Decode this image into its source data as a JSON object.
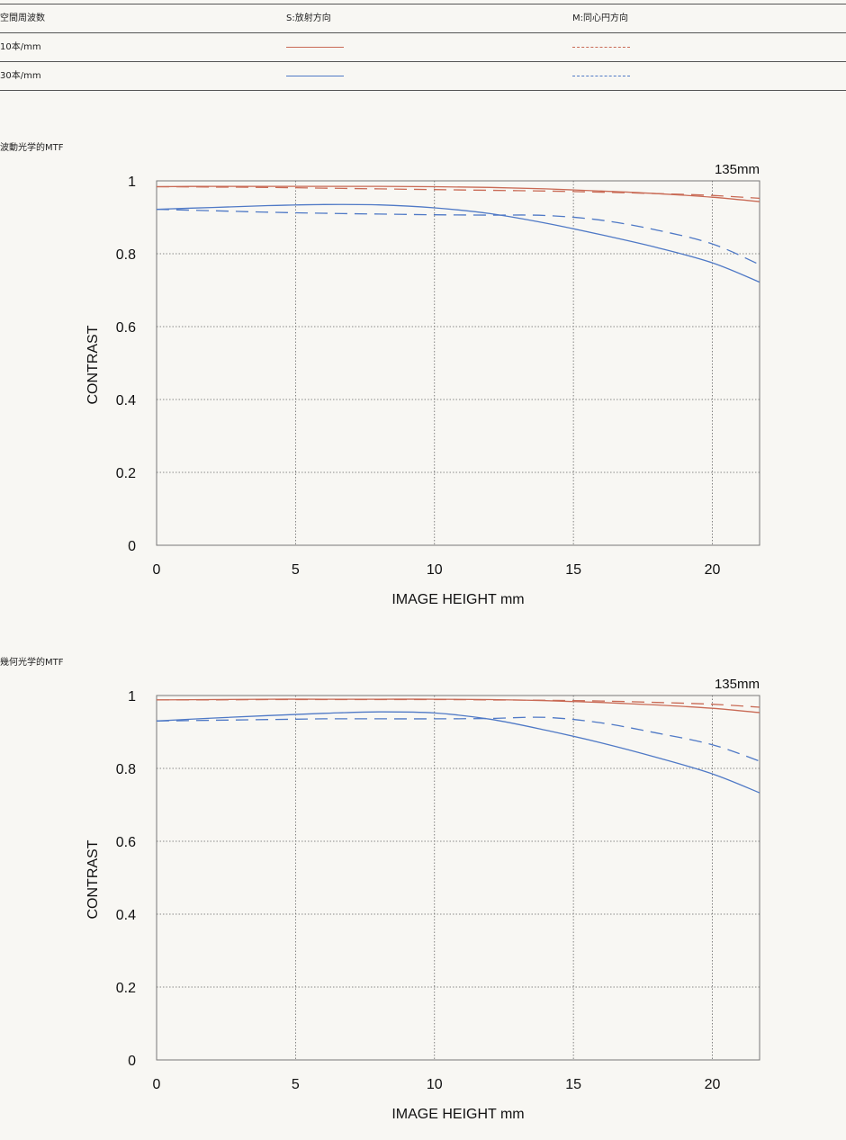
{
  "legend": {
    "header": [
      "空間周波数",
      "S:放射方向",
      "M:同心円方向"
    ],
    "rows": [
      {
        "label": "10本/mm",
        "color": "#c96a55"
      },
      {
        "label": "30本/mm",
        "color": "#4f79c6"
      }
    ]
  },
  "sections": [
    {
      "label": "波動光学的MTF"
    },
    {
      "label": "幾何光学的MTF"
    }
  ],
  "chart_data": [
    {
      "type": "line",
      "title": "135mm",
      "xlabel": "IMAGE HEIGHT  mm",
      "ylabel": "CONTRAST",
      "xlim": [
        0,
        21.7
      ],
      "ylim": [
        0,
        1
      ],
      "xticks": [
        0,
        5,
        10,
        15,
        20
      ],
      "yticks": [
        0,
        0.2,
        0.4,
        0.6,
        0.8,
        1
      ],
      "grid": true,
      "series": [
        {
          "freq": "10本/mm",
          "dir": "S",
          "color": "#c96a55",
          "dash": false,
          "x": [
            0,
            2,
            4,
            6,
            8,
            10,
            12,
            14,
            16,
            18,
            20,
            21.7
          ],
          "y": [
            0.984,
            0.985,
            0.985,
            0.985,
            0.985,
            0.984,
            0.982,
            0.978,
            0.972,
            0.965,
            0.955,
            0.943
          ]
        },
        {
          "freq": "10本/mm",
          "dir": "M",
          "color": "#c96a55",
          "dash": true,
          "x": [
            0,
            2,
            4,
            6,
            8,
            10,
            12,
            14,
            16,
            18,
            20,
            21.7
          ],
          "y": [
            0.984,
            0.983,
            0.982,
            0.98,
            0.978,
            0.976,
            0.974,
            0.972,
            0.969,
            0.965,
            0.96,
            0.952
          ]
        },
        {
          "freq": "30本/mm",
          "dir": "S",
          "color": "#4f79c6",
          "dash": false,
          "x": [
            0,
            2,
            4,
            6,
            8,
            10,
            12,
            14,
            16,
            18,
            20,
            21.7
          ],
          "y": [
            0.922,
            0.927,
            0.932,
            0.935,
            0.934,
            0.926,
            0.91,
            0.884,
            0.852,
            0.817,
            0.775,
            0.722
          ]
        },
        {
          "freq": "30本/mm",
          "dir": "M",
          "color": "#4f79c6",
          "dash": true,
          "x": [
            0,
            2,
            4,
            6,
            8,
            10,
            12,
            14,
            16,
            18,
            20,
            21.7
          ],
          "y": [
            0.922,
            0.918,
            0.914,
            0.911,
            0.909,
            0.907,
            0.906,
            0.905,
            0.892,
            0.865,
            0.827,
            0.77
          ]
        }
      ]
    },
    {
      "type": "line",
      "title": "135mm",
      "xlabel": "IMAGE HEIGHT  mm",
      "ylabel": "CONTRAST",
      "xlim": [
        0,
        21.7
      ],
      "ylim": [
        0,
        1
      ],
      "xticks": [
        0,
        5,
        10,
        15,
        20
      ],
      "yticks": [
        0,
        0.2,
        0.4,
        0.6,
        0.8,
        1
      ],
      "grid": true,
      "series": [
        {
          "freq": "10本/mm",
          "dir": "S",
          "color": "#c96a55",
          "dash": false,
          "x": [
            0,
            2,
            4,
            6,
            8,
            10,
            12,
            14,
            16,
            18,
            20,
            21.7
          ],
          "y": [
            0.988,
            0.989,
            0.99,
            0.99,
            0.99,
            0.99,
            0.989,
            0.986,
            0.981,
            0.974,
            0.965,
            0.953
          ]
        },
        {
          "freq": "10本/mm",
          "dir": "M",
          "color": "#c96a55",
          "dash": true,
          "x": [
            0,
            2,
            4,
            6,
            8,
            10,
            12,
            14,
            16,
            18,
            20,
            21.7
          ],
          "y": [
            0.988,
            0.988,
            0.989,
            0.989,
            0.989,
            0.989,
            0.988,
            0.987,
            0.985,
            0.981,
            0.976,
            0.968
          ]
        },
        {
          "freq": "30本/mm",
          "dir": "S",
          "color": "#4f79c6",
          "dash": false,
          "x": [
            0,
            2,
            4,
            6,
            8,
            10,
            12,
            14,
            16,
            18,
            20,
            21.7
          ],
          "y": [
            0.93,
            0.938,
            0.945,
            0.951,
            0.955,
            0.952,
            0.935,
            0.905,
            0.87,
            0.83,
            0.785,
            0.733
          ]
        },
        {
          "freq": "30本/mm",
          "dir": "M",
          "color": "#4f79c6",
          "dash": true,
          "x": [
            0,
            2,
            4,
            6,
            8,
            10,
            12,
            14,
            16,
            18,
            20,
            21.7
          ],
          "y": [
            0.93,
            0.932,
            0.934,
            0.936,
            0.936,
            0.936,
            0.937,
            0.94,
            0.925,
            0.897,
            0.865,
            0.82
          ]
        }
      ]
    }
  ]
}
